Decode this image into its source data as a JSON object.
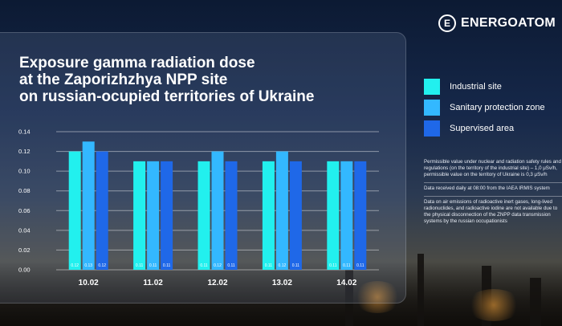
{
  "brand": {
    "name": "ENERGOATOM"
  },
  "title_lines": [
    "Exposure gamma radiation dose",
    "at the Zaporizhzhya NPP site",
    "on russian-ocupied territories of Ukraine"
  ],
  "legend": [
    {
      "label": "Industrial site",
      "color": "#22f0ee"
    },
    {
      "label": "Sanitary protection zone",
      "color": "#33b8ff"
    },
    {
      "label": "Supervised area",
      "color": "#1f68e8"
    }
  ],
  "notes": [
    "Permissible value under nuclear and radiation safety rules and regulations (on the territory of the industrial site) – 1,0 μSv/h, permissible value on the territory of Ukraine is 0,3 μSv/h",
    "Data received daily at 08:00 from the IAEA IRMIS system",
    "Data on air emissions of radioactive inert gases, long-lived radionuclides, and radioactive iodine are not available due to the physical disconnection of the ZNPP data transmission systems by the russian occupationists"
  ],
  "chart_data": {
    "type": "bar",
    "categories": [
      "10.02",
      "11.02",
      "12.02",
      "13.02",
      "14.02"
    ],
    "series": [
      {
        "name": "Industrial site",
        "values": [
          0.12,
          0.11,
          0.11,
          0.11,
          0.11
        ],
        "labels": [
          "0.12",
          "0.11",
          "0.11",
          "0.11",
          "0.11"
        ]
      },
      {
        "name": "Sanitary protection zone",
        "values": [
          0.13,
          0.11,
          0.12,
          0.12,
          0.11
        ],
        "labels": [
          "0.13",
          "0.11",
          "0.12",
          "0.12",
          "0.11"
        ]
      },
      {
        "name": "Supervised area",
        "values": [
          0.12,
          0.11,
          0.11,
          0.11,
          0.11
        ],
        "labels": [
          "0.12",
          "0.11",
          "0.11",
          "0.11",
          "0.11"
        ]
      }
    ],
    "yticks": [
      "0.00",
      "0.02",
      "0.04",
      "0.06",
      "0.08",
      "0.10",
      "0.12",
      "0.14"
    ],
    "ylim": [
      0,
      0.14
    ],
    "grid": true,
    "legend_position": "right"
  }
}
